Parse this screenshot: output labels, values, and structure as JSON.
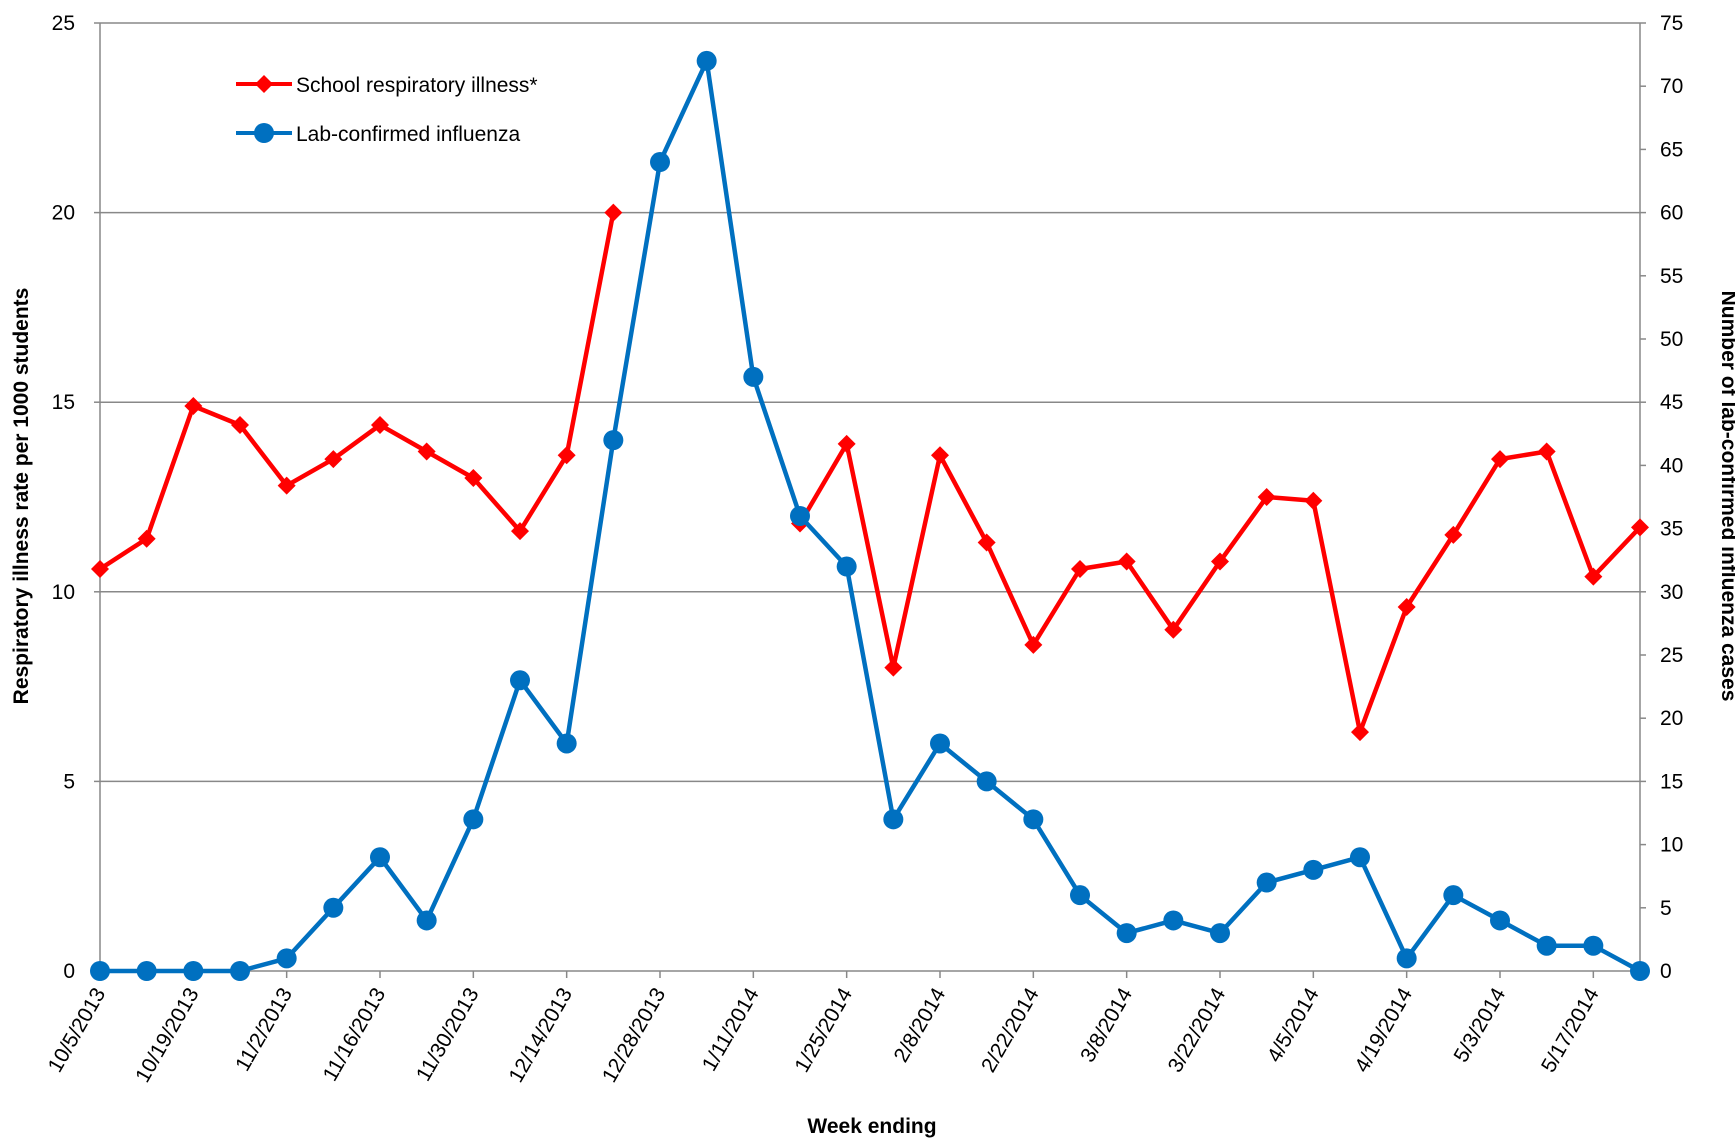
{
  "chart_data": {
    "type": "line",
    "title": "",
    "xlabel": "Week ending",
    "ylabel": "Respiratory illness rate per 1000 students",
    "y2label": "Number of lab-confirmed influenza cases",
    "ylim": [
      0,
      25
    ],
    "y2lim": [
      0,
      75
    ],
    "yticks": [
      "0",
      "5",
      "10",
      "15",
      "20",
      "25"
    ],
    "y2ticks": [
      "0",
      "5",
      "10",
      "15",
      "20",
      "25",
      "30",
      "35",
      "40",
      "45",
      "50",
      "55",
      "60",
      "65",
      "70",
      "75"
    ],
    "xtick_labels": [
      "10/5/2013",
      "10/19/2013",
      "11/2/2013",
      "11/16/2013",
      "11/30/2013",
      "12/14/2013",
      "12/28/2013",
      "1/11/2014",
      "1/25/2014",
      "2/8/2014",
      "2/22/2014",
      "3/8/2014",
      "3/22/2014",
      "4/5/2014",
      "4/19/2014",
      "5/3/2014",
      "5/17/2014"
    ],
    "x": [
      "10/5/2013",
      "10/12/2013",
      "10/19/2013",
      "10/26/2013",
      "11/2/2013",
      "11/9/2013",
      "11/16/2013",
      "11/23/2013",
      "11/30/2013",
      "12/7/2013",
      "12/14/2013",
      "12/21/2013",
      "12/28/2013",
      "1/4/2014",
      "1/11/2014",
      "1/18/2014",
      "1/25/2014",
      "2/1/2014",
      "2/8/2014",
      "2/15/2014",
      "2/22/2014",
      "3/1/2014",
      "3/8/2014",
      "3/15/2014",
      "3/22/2014",
      "3/29/2014",
      "4/5/2014",
      "4/12/2014",
      "4/19/2014",
      "4/26/2014",
      "5/3/2014",
      "5/10/2014",
      "5/17/2014",
      "5/24/2014"
    ],
    "grid": true,
    "legend_position": "top-left",
    "series": [
      {
        "name": "School respiratory illness*",
        "axis": "left",
        "color": "#ff0000",
        "marker": "diamond",
        "values": [
          10.6,
          11.4,
          14.9,
          14.4,
          12.8,
          13.5,
          14.4,
          13.7,
          13.0,
          11.6,
          13.6,
          20.0,
          null,
          null,
          null,
          11.8,
          13.9,
          8.0,
          13.6,
          11.3,
          8.6,
          10.6,
          10.8,
          9.0,
          10.8,
          12.5,
          12.4,
          6.3,
          9.6,
          11.5,
          13.5,
          13.7,
          10.4,
          11.7
        ]
      },
      {
        "name": "Lab-confirmed influenza",
        "axis": "right",
        "color": "#0070c0",
        "marker": "circle",
        "values": [
          0,
          0,
          0,
          0,
          1,
          5,
          9,
          4,
          12,
          23,
          18,
          42,
          64,
          72,
          47,
          36,
          32,
          12,
          18,
          15,
          12,
          6,
          3,
          4,
          3,
          7,
          8,
          9,
          1,
          6,
          4,
          2,
          2,
          0
        ]
      }
    ]
  }
}
